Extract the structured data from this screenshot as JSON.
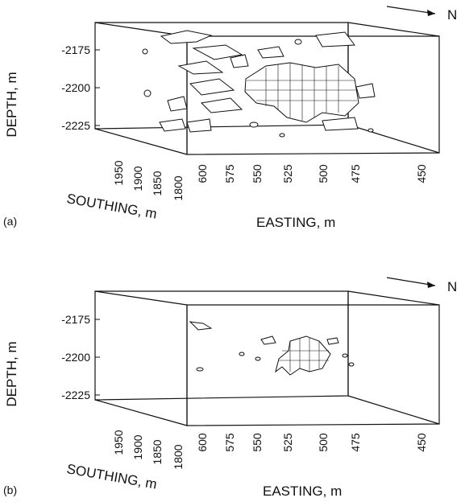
{
  "chart_data": [
    {
      "panel": "(a)",
      "type": "scatter",
      "north_label": "N",
      "zlabel": "DEPTH, m",
      "ylabel": "SOUTHING, m",
      "xlabel": "EASTING, m",
      "depth_ticks": [
        "-2175",
        "-2200",
        "-2225"
      ],
      "southing_ticks": [
        "1950",
        "1900",
        "1850",
        "1800"
      ],
      "easting_ticks": [
        "600",
        "575",
        "550",
        "525",
        "500",
        "475",
        "450"
      ],
      "depth_range": [
        -2235,
        -2165
      ],
      "easting_range": [
        450,
        610
      ],
      "southing_range": [
        1800,
        1975
      ]
    },
    {
      "panel": "(b)",
      "type": "scatter",
      "north_label": "N",
      "zlabel": "DEPTH, m",
      "ylabel": "SOUTHING, m",
      "xlabel": "EASTING, m",
      "depth_ticks": [
        "-2175",
        "-2200",
        "-2225"
      ],
      "southing_ticks": [
        "1950",
        "1900",
        "1850",
        "1800"
      ],
      "easting_ticks": [
        "600",
        "575",
        "550",
        "525",
        "500",
        "475",
        "450"
      ],
      "depth_range": [
        -2235,
        -2165
      ],
      "easting_range": [
        450,
        610
      ],
      "southing_range": [
        1800,
        1975
      ]
    }
  ]
}
